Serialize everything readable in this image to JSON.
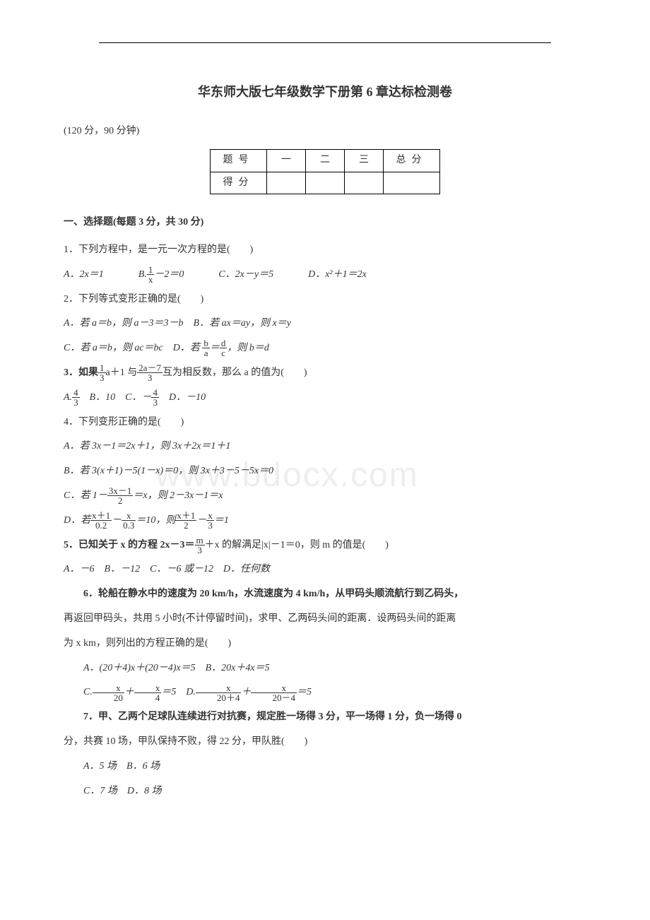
{
  "title": "华东师大版七年级数学下册第 6 章达标检测卷",
  "subtitle": "(120 分，90 分钟)",
  "watermark": "www.bdocx.com",
  "scoreTable": {
    "row1": {
      "label": "题号",
      "c1": "一",
      "c2": "二",
      "c3": "三",
      "total": "总分"
    },
    "row2": {
      "label": "得分",
      "c1": "",
      "c2": "",
      "c3": "",
      "total": ""
    }
  },
  "section1": "一、选择题(每题 3 分，共 30 分)",
  "q1": {
    "stem": "1．下列方程中，是一元一次方程的是(　　)",
    "optA": "A．2x＝1",
    "optB_pre": "B.",
    "optB_num": "1",
    "optB_den": "x",
    "optB_post": "－2＝0",
    "optC": "C．2x－y＝5",
    "optD": "D．x²＋1＝2x"
  },
  "q2": {
    "stem": "2．下列等式变形正确的是(　　)",
    "lineAB": "A．若 a＝b，则 a－3＝3－b　B．若 ax＝ay，则 x＝y",
    "lineC_pre": "C．若 a＝b，则 ac＝bc　D．若",
    "lineC_f1n": "b",
    "lineC_f1d": "a",
    "lineC_mid": "＝",
    "lineC_f2n": "d",
    "lineC_f2d": "c",
    "lineC_post": "，则 b＝d"
  },
  "q3": {
    "stem_pre": "3．如果",
    "f1n": "1",
    "f1d": "3",
    "stem_mid1": "a＋1 与",
    "f2n": "2a－7",
    "f2d": "3",
    "stem_post": "互为相反数，那么 a 的值为(　　)",
    "opt_pre": "A.",
    "optA_n": "4",
    "optA_d": "3",
    "opt_b": "　B．10　C．－",
    "optC_n": "4",
    "optC_d": "3",
    "opt_d": "　D．－10"
  },
  "q4": {
    "stem": "4．下列变形正确的是(　　)",
    "optA": "A．若 3x－1＝2x＋1，则 3x＋2x＝1＋1",
    "optB": "B．若 3(x＋1)－5(1－x)＝0，则 3x＋3－5－5x＝0",
    "optC_pre": "C．若 1－",
    "optC_f1n": "3x－1",
    "optC_f1d": "2",
    "optC_post": "＝x，则 2－3x－1＝x",
    "optD_pre": "D．若",
    "optD_f1n": "x＋1",
    "optD_f1d": "0.2",
    "optD_mid1": "－",
    "optD_f2n": "x",
    "optD_f2d": "0.3",
    "optD_mid2": "＝10，则",
    "optD_f3n": "x＋1",
    "optD_f3d": "2",
    "optD_mid3": "－",
    "optD_f4n": "x",
    "optD_f4d": "3",
    "optD_post": "＝1"
  },
  "q5": {
    "stem_pre": "5．已知关于 x 的方程 2x－3＝",
    "f1n": "m",
    "f1d": "3",
    "stem_post": "＋x 的解满足|x|－1＝0，则 m 的值是(　　)",
    "opts": "A．－6　B．－12　C．－6 或－12　D．任何数"
  },
  "q6": {
    "line1": "6．轮船在静水中的速度为 20 km/h，水流速度为 4 km/h，从甲码头顺流航行到乙码头，",
    "line2": "再返回甲码头，共用 5 小时(不计停留时间)，求甲、乙两码头间的距离．设两码头间的距离",
    "line3": "为 x km，则列出的方程正确的是(　　)",
    "optAB": "A．(20＋4)x＋(20－4)x＝5　B．20x＋4x＝5",
    "optC_pre": "C.",
    "optC_f1n": "x",
    "optC_f1d": "20",
    "optC_mid1": "＋",
    "optC_f2n": "x",
    "optC_f2d": "4",
    "optC_mid2": "＝5　D.",
    "optC_f3n": "x",
    "optC_f3d": "20＋4",
    "optC_mid3": "＋",
    "optC_f4n": "x",
    "optC_f4d": "20－4",
    "optC_post": "＝5"
  },
  "q7": {
    "line1": "7．甲、乙两个足球队连续进行对抗赛，规定胜一场得 3 分，平一场得 1 分，负一场得 0",
    "line2": "分，共赛 10 场，甲队保持不败，得 22 分，甲队胜(　　)",
    "optAB": "A．5 场　B．6 场",
    "optCD": "C．7 场　D．8 场"
  }
}
